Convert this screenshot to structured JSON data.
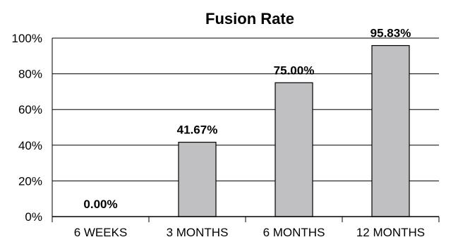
{
  "chart_data": {
    "type": "bar",
    "title": "Fusion Rate",
    "categories": [
      "6 WEEKS",
      "3 MONTHS",
      "6 MONTHS",
      "12 MONTHS"
    ],
    "values": [
      0.0,
      41.67,
      75.0,
      95.83
    ],
    "data_labels": [
      "0.00%",
      "41.67%",
      "75.00%",
      "95.83%"
    ],
    "yticks": [
      "0%",
      "20%",
      "40%",
      "60%",
      "80%",
      "100%"
    ],
    "ylim": [
      0,
      100
    ],
    "grid": true,
    "legend": "none",
    "colors": {
      "bar_fill": "#c0c0c2",
      "bar_stroke": "#000000",
      "grid": "#000000",
      "text": "#000000"
    }
  }
}
